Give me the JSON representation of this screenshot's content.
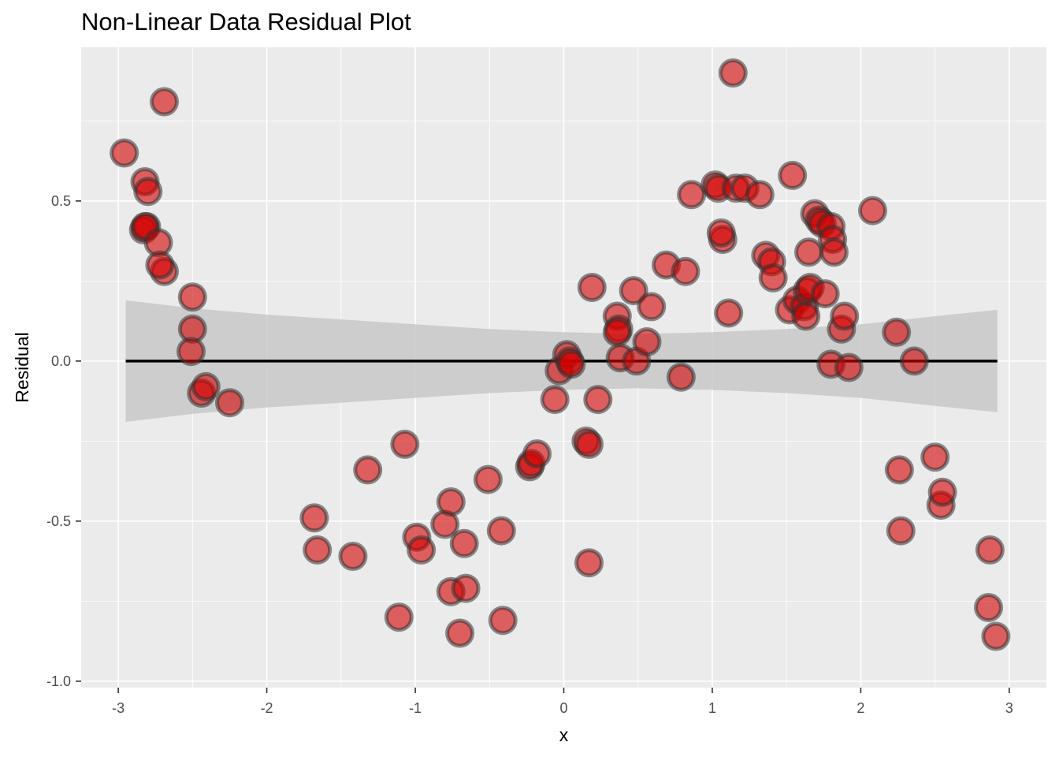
{
  "chart_data": {
    "type": "scatter",
    "title": "Non-Linear Data Residual Plot",
    "xlabel": "x",
    "ylabel": "Residual",
    "xlim": [
      -3.25,
      3.25
    ],
    "ylim": [
      -1.02,
      0.98
    ],
    "x_ticks": [
      -3,
      -2,
      -1,
      0,
      1,
      2,
      3
    ],
    "y_ticks": [
      -1.0,
      -0.5,
      0.0,
      0.5
    ],
    "x_tick_labels": [
      "-3",
      "-2",
      "-1",
      "0",
      "1",
      "2",
      "3"
    ],
    "y_tick_labels": [
      "-1.0",
      "-0.5",
      "0.0",
      "0.5"
    ],
    "grid": true,
    "colors": {
      "panel": "#ebebeb",
      "grid": "#ffffff",
      "point_fill": "#d40000",
      "point_outline": "#333333",
      "band": "#c8c8c8",
      "fit_line": "#000000"
    },
    "fit_line": {
      "x": [
        -2.95,
        2.92
      ],
      "y": [
        0.0,
        0.0
      ]
    },
    "confidence_band": {
      "x": [
        -2.95,
        -2.5,
        -2.0,
        -1.5,
        -1.0,
        -0.5,
        0.0,
        0.5,
        1.0,
        1.5,
        2.0,
        2.5,
        2.92
      ],
      "upper": [
        0.19,
        0.165,
        0.145,
        0.13,
        0.115,
        0.1,
        0.09,
        0.085,
        0.09,
        0.1,
        0.115,
        0.14,
        0.16
      ],
      "lower": [
        -0.19,
        -0.165,
        -0.145,
        -0.13,
        -0.115,
        -0.1,
        -0.09,
        -0.085,
        -0.09,
        -0.1,
        -0.115,
        -0.14,
        -0.16
      ]
    },
    "points": {
      "x": [
        -2.96,
        -2.82,
        -2.8,
        -2.83,
        -2.81,
        -2.82,
        -2.69,
        -2.73,
        -2.69,
        -2.72,
        -2.5,
        -2.5,
        -2.51,
        -2.44,
        -2.41,
        -2.25,
        -1.68,
        -1.66,
        -1.42,
        -1.32,
        -1.11,
        -1.07,
        -0.99,
        -0.96,
        -0.8,
        -0.76,
        -0.76,
        -0.7,
        -0.67,
        -0.66,
        -0.51,
        -0.42,
        -0.41,
        -0.23,
        -0.22,
        -0.18,
        -0.06,
        -0.03,
        0.02,
        0.04,
        0.05,
        0.15,
        0.17,
        0.17,
        0.19,
        0.23,
        0.36,
        0.37,
        0.36,
        0.38,
        0.47,
        0.49,
        0.56,
        0.59,
        0.69,
        0.79,
        0.82,
        0.86,
        1.02,
        1.04,
        1.07,
        1.06,
        1.11,
        1.14,
        1.16,
        1.22,
        1.32,
        1.36,
        1.4,
        1.41,
        1.52,
        1.54,
        1.57,
        1.62,
        1.63,
        1.65,
        1.64,
        1.66,
        1.69,
        1.72,
        1.74,
        1.76,
        1.8,
        1.8,
        1.81,
        1.82,
        1.87,
        1.89,
        1.92,
        2.08,
        2.24,
        2.26,
        2.27,
        2.36,
        2.5,
        2.54,
        2.55,
        2.86,
        2.87,
        2.91
      ],
      "y": [
        0.65,
        0.56,
        0.53,
        0.41,
        0.42,
        0.42,
        0.81,
        0.37,
        0.28,
        0.3,
        0.2,
        0.1,
        0.03,
        -0.1,
        -0.08,
        -0.13,
        -0.49,
        -0.59,
        -0.61,
        -0.34,
        -0.8,
        -0.26,
        -0.55,
        -0.59,
        -0.51,
        -0.44,
        -0.72,
        -0.85,
        -0.57,
        -0.71,
        -0.37,
        -0.53,
        -0.81,
        -0.33,
        -0.32,
        -0.29,
        -0.12,
        -0.03,
        0.02,
        0.0,
        -0.01,
        -0.25,
        -0.26,
        -0.63,
        0.23,
        -0.12,
        0.14,
        0.1,
        0.09,
        0.01,
        0.22,
        0.0,
        0.06,
        0.17,
        0.3,
        -0.05,
        0.28,
        0.52,
        0.55,
        0.54,
        0.38,
        0.4,
        0.15,
        0.9,
        0.54,
        0.54,
        0.52,
        0.33,
        0.31,
        0.26,
        0.16,
        0.58,
        0.19,
        0.17,
        0.14,
        0.34,
        0.22,
        0.23,
        0.46,
        0.44,
        0.43,
        0.21,
        -0.01,
        0.42,
        0.38,
        0.34,
        0.1,
        0.14,
        -0.02,
        0.47,
        0.09,
        -0.34,
        -0.53,
        0.0,
        -0.3,
        -0.45,
        -0.41,
        -0.77,
        -0.59,
        -0.86
      ]
    }
  }
}
